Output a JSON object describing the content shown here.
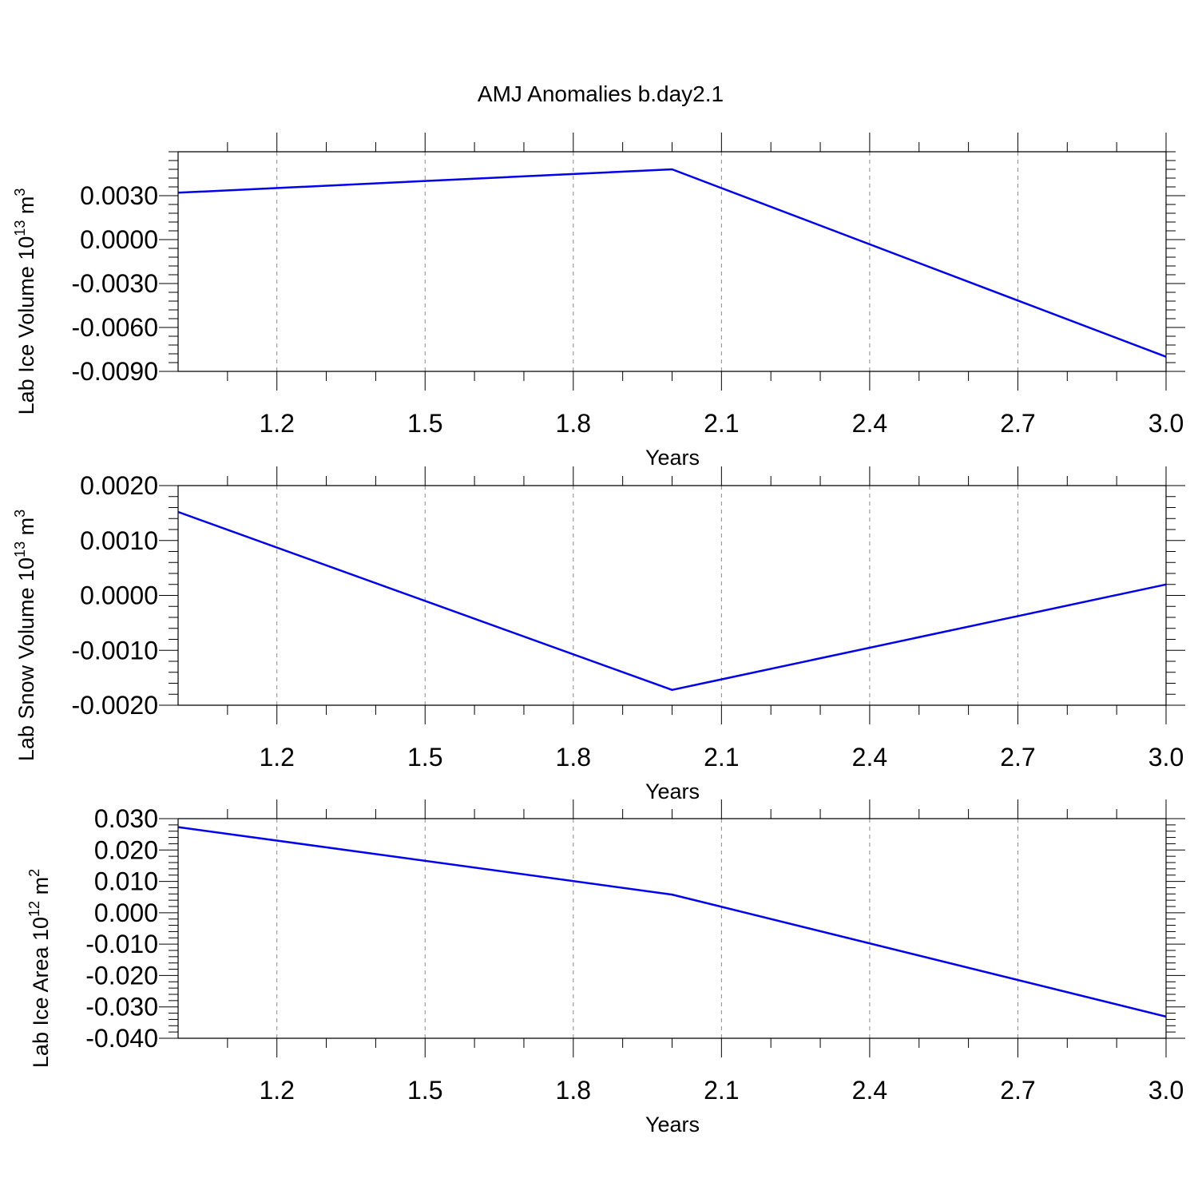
{
  "figure": {
    "title": "AMJ Anomalies b.day2.1"
  },
  "chart_data": [
    {
      "type": "line",
      "ylabel_base": "Lab Ice Volume 10",
      "ylabel_exp": "13",
      "ylabel_unit": " m",
      "ylabel_unit_exp": "3",
      "xlabel": "Years",
      "xlim": [
        1.0,
        3.0
      ],
      "xticks": [
        1.2,
        1.5,
        1.8,
        2.1,
        2.4,
        2.7,
        3.0
      ],
      "xtick_labels": [
        "1.2",
        "1.5",
        "1.8",
        "2.1",
        "2.4",
        "2.7",
        "3.0"
      ],
      "ylim": [
        -0.009,
        0.006
      ],
      "yticks": [
        0.003,
        0.0,
        -0.003,
        -0.006,
        -0.009
      ],
      "ytick_labels": [
        "0.0030",
        "0.0000",
        "-0.0030",
        "-0.0060",
        "-0.0090"
      ],
      "y_minor_step": 0.0006,
      "grid": "vertical dashed",
      "series": [
        {
          "color": "#0000ee",
          "x": [
            1.0,
            2.0,
            3.0
          ],
          "y": [
            0.0032,
            0.0048,
            -0.008
          ]
        }
      ]
    },
    {
      "type": "line",
      "ylabel_base": "Lab Snow Volume 10",
      "ylabel_exp": "13",
      "ylabel_unit": " m",
      "ylabel_unit_exp": "3",
      "xlabel": "Years",
      "xlim": [
        1.0,
        3.0
      ],
      "xticks": [
        1.2,
        1.5,
        1.8,
        2.1,
        2.4,
        2.7,
        3.0
      ],
      "xtick_labels": [
        "1.2",
        "1.5",
        "1.8",
        "2.1",
        "2.4",
        "2.7",
        "3.0"
      ],
      "ylim": [
        -0.002,
        0.002
      ],
      "yticks": [
        0.002,
        0.001,
        0.0,
        -0.001,
        -0.002
      ],
      "ytick_labels": [
        "0.0020",
        "0.0010",
        "0.0000",
        "-0.0010",
        "-0.0020"
      ],
      "y_minor_step": 0.0002,
      "grid": "vertical dashed",
      "series": [
        {
          "color": "#0000ee",
          "x": [
            1.0,
            2.0,
            3.0
          ],
          "y": [
            0.00152,
            -0.00172,
            0.0002
          ]
        }
      ]
    },
    {
      "type": "line",
      "ylabel_base": "Lab Ice Area 10",
      "ylabel_exp": "12",
      "ylabel_unit": " m",
      "ylabel_unit_exp": "2",
      "xlabel": "Years",
      "xlim": [
        1.0,
        3.0
      ],
      "xticks": [
        1.2,
        1.5,
        1.8,
        2.1,
        2.4,
        2.7,
        3.0
      ],
      "xtick_labels": [
        "1.2",
        "1.5",
        "1.8",
        "2.1",
        "2.4",
        "2.7",
        "3.0"
      ],
      "ylim": [
        -0.04,
        0.03
      ],
      "yticks": [
        0.03,
        0.02,
        0.01,
        0.0,
        -0.01,
        -0.02,
        -0.03,
        -0.04
      ],
      "ytick_labels": [
        "0.030",
        "0.020",
        "0.010",
        "0.000",
        "-0.010",
        "-0.020",
        "-0.030",
        "-0.040"
      ],
      "y_minor_step": 0.002,
      "grid": "vertical dashed",
      "series": [
        {
          "color": "#0000ee",
          "x": [
            1.0,
            2.0,
            3.0
          ],
          "y": [
            0.0273,
            0.0058,
            -0.0331
          ]
        }
      ]
    }
  ]
}
